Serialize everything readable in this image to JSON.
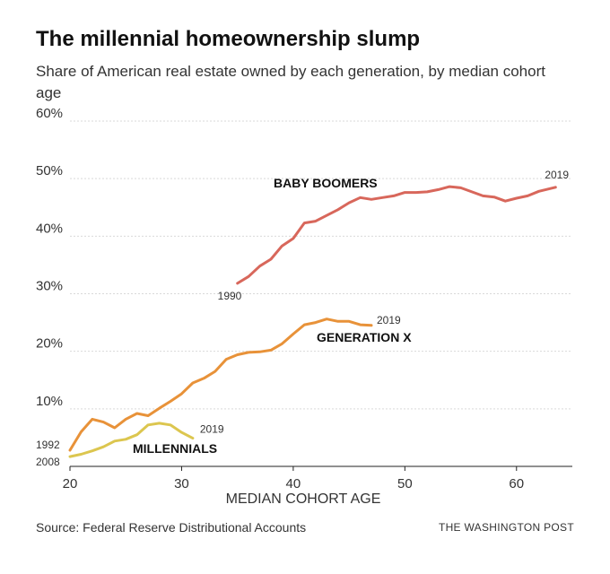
{
  "header": {
    "title": "The millennial homeownership slump",
    "subtitle": "Share of American real estate owned by each generation, by median cohort age"
  },
  "footer": {
    "source": "Source: Federal Reserve Distributional Accounts",
    "credit": "THE WASHINGTON POST"
  },
  "chart_data": {
    "type": "line",
    "title": "The millennial homeownership slump",
    "subtitle": "Share of American real estate owned by each generation, by median cohort age",
    "xlabel": "MEDIAN COHORT AGE",
    "ylabel": "",
    "xlim": [
      20,
      65
    ],
    "ylim": [
      0,
      60
    ],
    "x_ticks": [
      20,
      30,
      40,
      50,
      60
    ],
    "x_tick_labels": [
      "20",
      "30",
      "40",
      "50",
      "60"
    ],
    "y_ticks": [
      10,
      20,
      30,
      40,
      50,
      60
    ],
    "y_tick_labels": [
      "10%",
      "20%",
      "30%",
      "40%",
      "50%",
      "60%"
    ],
    "grid": "horizontal",
    "series": [
      {
        "name": "BABY BOOMERS",
        "color": "#d8675b",
        "start_label": "1990",
        "end_label": "2019",
        "x": [
          35,
          36,
          37,
          38,
          39,
          40,
          41,
          42,
          43,
          44,
          45,
          46,
          47,
          48,
          49,
          50,
          51,
          52,
          53,
          54,
          55,
          56,
          57,
          58,
          59,
          60,
          61,
          62,
          63.5
        ],
        "y": [
          31.8,
          33,
          34.8,
          36,
          38.3,
          39.6,
          42.3,
          42.6,
          43.6,
          44.6,
          45.8,
          46.7,
          46.4,
          46.7,
          47,
          47.6,
          47.6,
          47.7,
          48.1,
          48.6,
          48.4,
          47.7,
          47,
          46.8,
          46.1,
          46.6,
          47,
          47.8,
          48.5
        ]
      },
      {
        "name": "GENERATION X",
        "color": "#e89239",
        "start_label": "1992",
        "end_label": "2019",
        "x": [
          20,
          21,
          22,
          23,
          24,
          25,
          26,
          27,
          28,
          29,
          30,
          31,
          32,
          33,
          34,
          35,
          36,
          37,
          38,
          39,
          40,
          41,
          42,
          43,
          44,
          45,
          46,
          47
        ],
        "y": [
          2.8,
          6,
          8.2,
          7.7,
          6.7,
          8.2,
          9.2,
          8.8,
          10.1,
          11.3,
          12.6,
          14.5,
          15.3,
          16.5,
          18.6,
          19.4,
          19.8,
          19.9,
          20.2,
          21.3,
          23,
          24.6,
          25,
          25.6,
          25.2,
          25.2,
          24.6,
          24.5
        ]
      },
      {
        "name": "MILLENNIALS",
        "color": "#dcc64f",
        "start_label": "2008",
        "end_label": "2019",
        "x": [
          20,
          21,
          22,
          23,
          24,
          25,
          26,
          27,
          28,
          29,
          30,
          31
        ],
        "y": [
          1.7,
          2.1,
          2.7,
          3.4,
          4.4,
          4.7,
          5.5,
          7.2,
          7.5,
          7.2,
          5.9,
          4.9
        ]
      }
    ]
  }
}
